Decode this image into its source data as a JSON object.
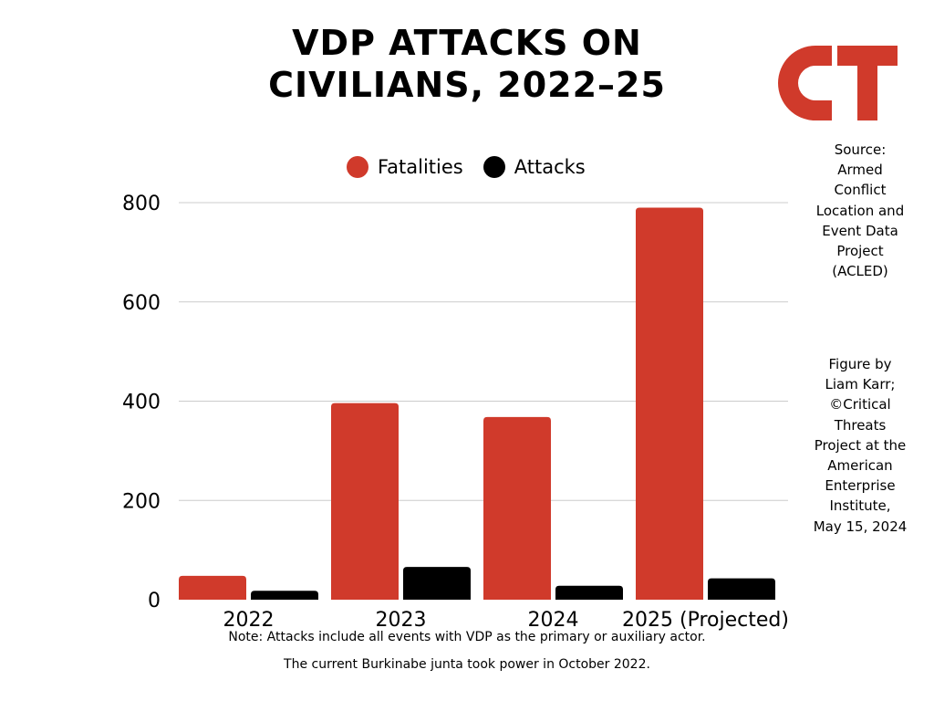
{
  "title": "VDP ATTACKS ON CIVILIANS, 2022–25",
  "logo_text": "CT",
  "colors": {
    "fatalities": "#d03a2b",
    "attacks": "#000000",
    "grid": "#cccccc",
    "brand": "#d03a2b"
  },
  "legend": [
    {
      "label": "Fatalities",
      "color": "#d03a2b"
    },
    {
      "label": "Attacks",
      "color": "#000000"
    }
  ],
  "source_note": "Source:\nArmed\nConflict\nLocation and\nEvent Data\nProject\n(ACLED)",
  "credit_note": "Figure by\nLiam Karr;\n©Critical\nThreats\nProject at the\nAmerican\nEnterprise\nInstitute,\nMay 15, 2024",
  "footnotes": {
    "note": "Note: Attacks include all events with VDP as the primary or auxiliary actor.",
    "junta": "The current Burkinabe junta took power in October 2022."
  },
  "chart_data": {
    "type": "bar",
    "categories": [
      "2022",
      "2023",
      "2024",
      "2025 (Projected)"
    ],
    "series": [
      {
        "name": "Fatalities",
        "values": [
          48,
          396,
          368,
          790
        ]
      },
      {
        "name": "Attacks",
        "values": [
          18,
          66,
          28,
          43
        ]
      }
    ],
    "ylim": [
      0,
      800
    ],
    "yticks": [
      "0",
      "200",
      "400",
      "600",
      "800"
    ],
    "grid": true,
    "legend_position": "top"
  }
}
